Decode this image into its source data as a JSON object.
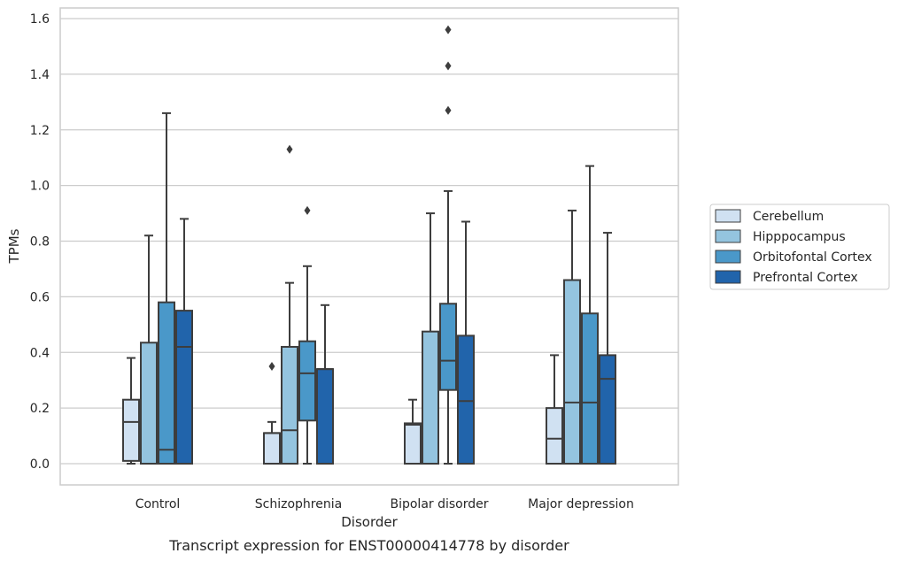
{
  "chart_data": {
    "type": "boxplot",
    "caption": "Transcript expression for ENST00000414778 by disorder",
    "xlabel": "Disorder",
    "ylabel": "TPMs",
    "ylim": [
      -0.075,
      1.645
    ],
    "yticks": [
      "0.0",
      "0.2",
      "0.4",
      "0.6",
      "0.8",
      "1.0",
      "1.2",
      "1.4",
      "1.6"
    ],
    "ytick_values": [
      0.0,
      0.2,
      0.4,
      0.6,
      0.8,
      1.0,
      1.2,
      1.4,
      1.6
    ],
    "grid": true,
    "legend_position": "right",
    "categories": [
      "Control",
      "Schizophrenia",
      "Bipolar disorder",
      "Major depression"
    ],
    "series": [
      {
        "name": "Cerebellum",
        "color": "#d0e1f2",
        "boxes": [
          {
            "whisker_low": 0.0,
            "q1": 0.01,
            "median": 0.15,
            "q3": 0.23,
            "whisker_high": 0.38,
            "outliers": []
          },
          {
            "whisker_low": 0.0,
            "q1": 0.0,
            "median": 0.11,
            "q3": 0.11,
            "whisker_high": 0.15,
            "outliers": [
              0.35
            ]
          },
          {
            "whisker_low": 0.0,
            "q1": 0.0,
            "median": 0.14,
            "q3": 0.145,
            "whisker_high": 0.23,
            "outliers": []
          },
          {
            "whisker_low": 0.0,
            "q1": 0.0,
            "median": 0.09,
            "q3": 0.2,
            "whisker_high": 0.39,
            "outliers": []
          }
        ]
      },
      {
        "name": "Hipppocampus",
        "color": "#94c4df",
        "boxes": [
          {
            "whisker_low": 0.0,
            "q1": 0.0,
            "median": 0.0,
            "q3": 0.435,
            "whisker_high": 0.82,
            "outliers": []
          },
          {
            "whisker_low": 0.0,
            "q1": 0.0,
            "median": 0.12,
            "q3": 0.42,
            "whisker_high": 0.65,
            "outliers": [
              1.13
            ]
          },
          {
            "whisker_low": 0.0,
            "q1": 0.0,
            "median": 0.0,
            "q3": 0.475,
            "whisker_high": 0.9,
            "outliers": []
          },
          {
            "whisker_low": 0.0,
            "q1": 0.0,
            "median": 0.22,
            "q3": 0.66,
            "whisker_high": 0.91,
            "outliers": []
          }
        ]
      },
      {
        "name": "Orbitofontal Cortex",
        "color": "#4a98c9",
        "boxes": [
          {
            "whisker_low": 0.0,
            "q1": 0.0,
            "median": 0.05,
            "q3": 0.58,
            "whisker_high": 1.26,
            "outliers": []
          },
          {
            "whisker_low": 0.0,
            "q1": 0.155,
            "median": 0.325,
            "q3": 0.44,
            "whisker_high": 0.71,
            "outliers": [
              0.91
            ]
          },
          {
            "whisker_low": 0.0,
            "q1": 0.265,
            "median": 0.37,
            "q3": 0.575,
            "whisker_high": 0.98,
            "outliers": [
              1.27,
              1.43,
              1.56
            ]
          },
          {
            "whisker_low": 0.0,
            "q1": 0.0,
            "median": 0.22,
            "q3": 0.54,
            "whisker_high": 1.07,
            "outliers": []
          }
        ]
      },
      {
        "name": "Prefrontal Cortex",
        "color": "#2164ab",
        "boxes": [
          {
            "whisker_low": 0.0,
            "q1": 0.0,
            "median": 0.42,
            "q3": 0.55,
            "whisker_high": 0.88,
            "outliers": []
          },
          {
            "whisker_low": 0.0,
            "q1": 0.0,
            "median": 0.34,
            "q3": 0.34,
            "whisker_high": 0.57,
            "outliers": []
          },
          {
            "whisker_low": 0.0,
            "q1": 0.0,
            "median": 0.225,
            "q3": 0.46,
            "whisker_high": 0.87,
            "outliers": []
          },
          {
            "whisker_low": 0.0,
            "q1": 0.0,
            "median": 0.305,
            "q3": 0.39,
            "whisker_high": 0.83,
            "outliers": []
          }
        ]
      }
    ]
  }
}
